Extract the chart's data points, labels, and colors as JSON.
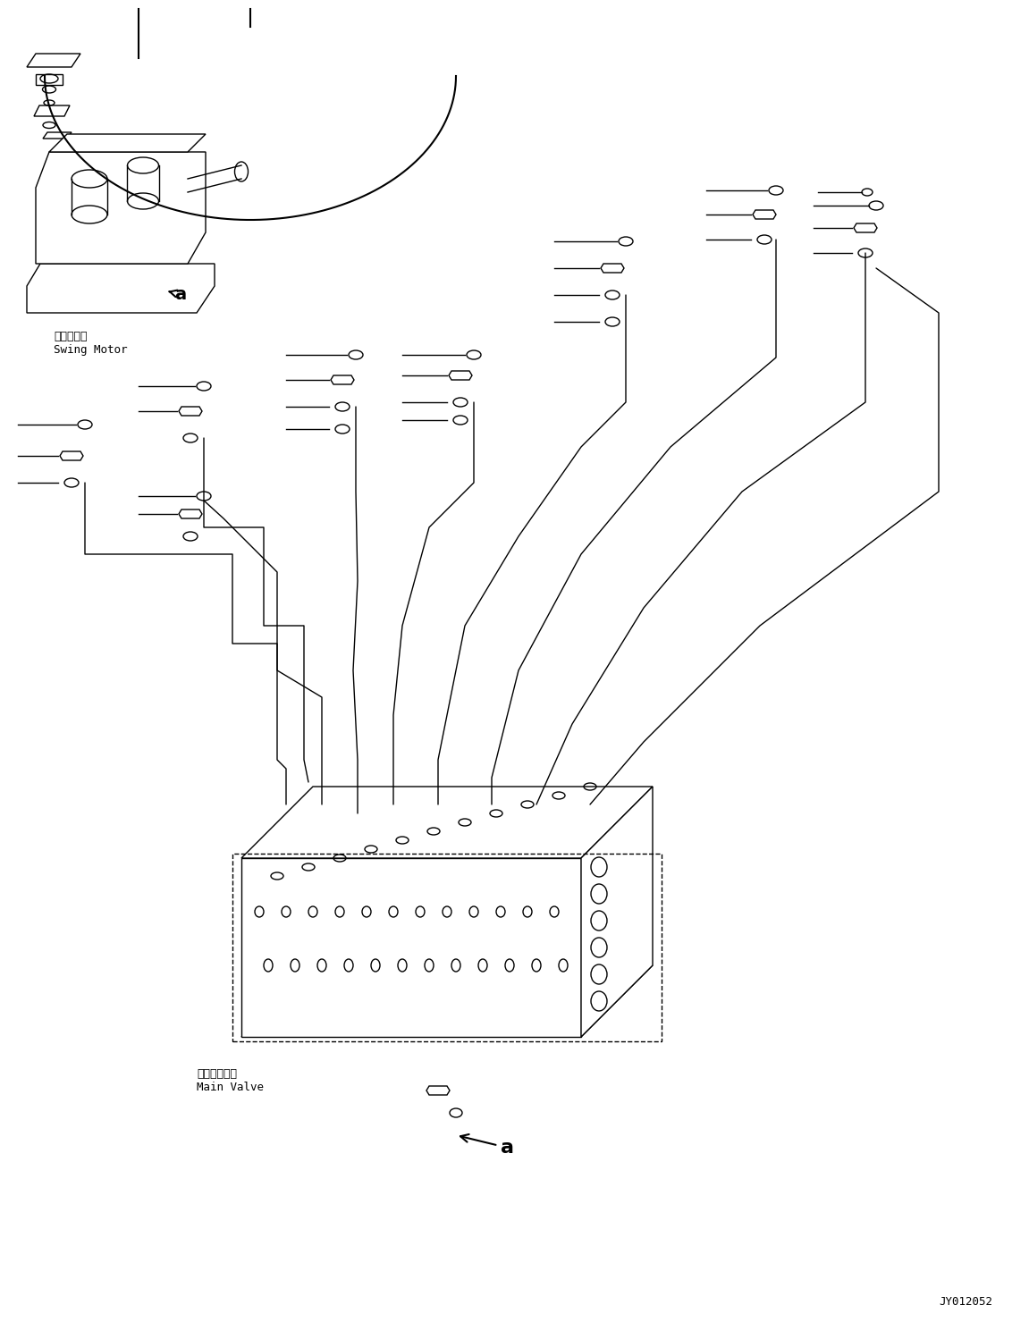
{
  "title": "",
  "bg_color": "#ffffff",
  "line_color": "#000000",
  "fig_width": 11.51,
  "fig_height": 14.79,
  "dpi": 100,
  "swing_motor_label_jp": "旋回モータ",
  "swing_motor_label_en": "Swing Motor",
  "main_valve_label_jp": "メインバルブ",
  "main_valve_label_en": "Main Valve",
  "watermark": "JY012052"
}
